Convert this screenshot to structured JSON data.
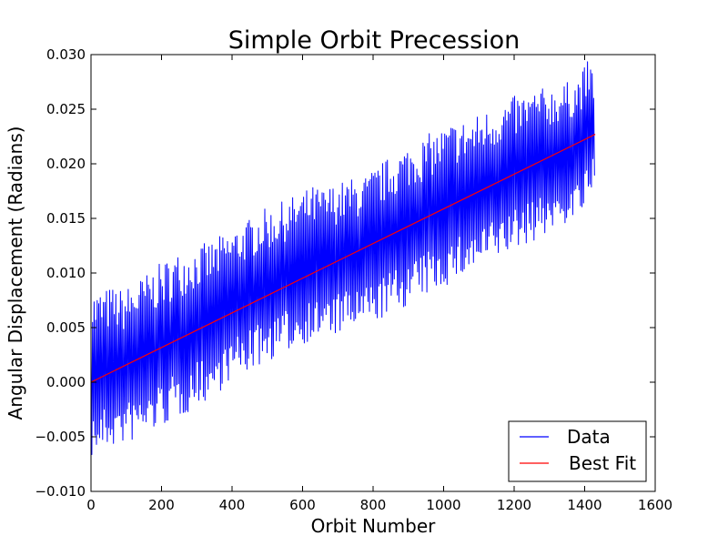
{
  "chart_data": {
    "type": "line",
    "title": "Simple Orbit Precession",
    "xlabel": "Orbit Number",
    "ylabel": "Angular Displacement (Radians)",
    "xlim": [
      0,
      1600
    ],
    "ylim": [
      -0.01,
      0.03
    ],
    "x_ticks": [
      0,
      200,
      400,
      600,
      800,
      1000,
      1200,
      1400,
      1600
    ],
    "x_tick_labels": [
      "0",
      "200",
      "400",
      "600",
      "800",
      "1000",
      "1200",
      "1400",
      "1600"
    ],
    "y_ticks": [
      -0.01,
      -0.005,
      0.0,
      0.005,
      0.01,
      0.015,
      0.02,
      0.025,
      0.03
    ],
    "y_tick_labels": [
      "−0.010",
      "−0.005",
      "0.000",
      "0.005",
      "0.010",
      "0.015",
      "0.020",
      "0.025",
      "0.030"
    ],
    "grid": false,
    "legend_position": "lower-right",
    "series": [
      {
        "name": "Data",
        "color": "#0000ff",
        "x": [
          0,
          30,
          60,
          90,
          120,
          150,
          180,
          210,
          240,
          270,
          300,
          330,
          360,
          390,
          420,
          450,
          480,
          510,
          540,
          570,
          600,
          630,
          660,
          690,
          720,
          750,
          780,
          810,
          840,
          870,
          900,
          930,
          960,
          990,
          1020,
          1050,
          1080,
          1110,
          1140,
          1170,
          1200,
          1230,
          1260,
          1290,
          1320,
          1350,
          1380,
          1410,
          1430
        ],
        "upper": [
          0.0085,
          0.0085,
          0.0088,
          0.0085,
          0.0092,
          0.0098,
          0.0105,
          0.0112,
          0.0118,
          0.0122,
          0.0125,
          0.0128,
          0.0133,
          0.0138,
          0.0145,
          0.015,
          0.0158,
          0.016,
          0.0165,
          0.017,
          0.0175,
          0.018,
          0.0178,
          0.0182,
          0.0185,
          0.0188,
          0.019,
          0.0198,
          0.0205,
          0.0212,
          0.0218,
          0.0222,
          0.0228,
          0.0232,
          0.0238,
          0.024,
          0.0242,
          0.0248,
          0.0252,
          0.0258,
          0.0262,
          0.0265,
          0.0268,
          0.027,
          0.0272,
          0.0275,
          0.028,
          0.0295,
          0.0285
        ],
        "lower": [
          -0.007,
          -0.0065,
          -0.006,
          -0.0058,
          -0.0055,
          -0.005,
          -0.0045,
          -0.004,
          -0.0035,
          -0.003,
          -0.002,
          -0.0018,
          -0.001,
          0.0,
          0.0005,
          0.001,
          0.0015,
          0.002,
          0.0025,
          0.003,
          0.0035,
          0.0038,
          0.004,
          0.0042,
          0.0045,
          0.0048,
          0.005,
          0.0055,
          0.006,
          0.0065,
          0.007,
          0.0075,
          0.008,
          0.0085,
          0.009,
          0.0095,
          0.01,
          0.0105,
          0.011,
          0.0115,
          0.012,
          0.0125,
          0.013,
          0.0135,
          0.014,
          0.0145,
          0.015,
          0.016,
          0.018
        ]
      },
      {
        "name": "Best Fit",
        "color": "#ff0000",
        "x": [
          0,
          1430
        ],
        "y": [
          0.0,
          0.0227
        ]
      }
    ]
  }
}
